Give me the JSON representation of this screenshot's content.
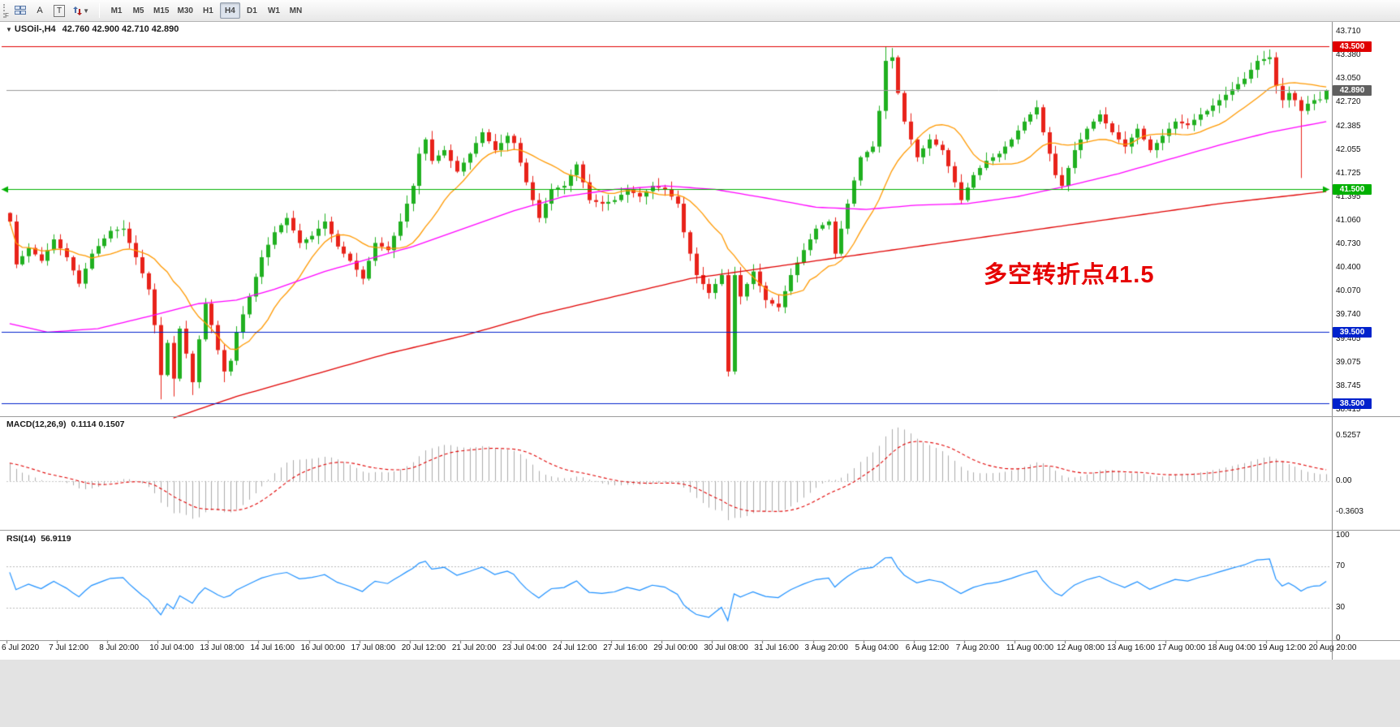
{
  "toolbar": {
    "buttons": [
      {
        "name": "text-annotation",
        "label": "A"
      },
      {
        "name": "text-box",
        "label": "T"
      }
    ],
    "timeframes": [
      "M1",
      "M5",
      "M15",
      "M30",
      "H1",
      "H4",
      "D1",
      "W1",
      "MN"
    ],
    "active_timeframe": "H4",
    "f_label": "F"
  },
  "chart_data": {
    "type": "candlestick",
    "symbol_label": "USOil-,H4",
    "ohlc_label": "42.760 42.900 42.710 42.890",
    "current_ohlc": {
      "open": 42.76,
      "high": 42.9,
      "low": 42.71,
      "close": 42.89
    },
    "y_range": [
      38.38,
      43.755
    ],
    "label_every": 8,
    "price_axis_ticks": [
      "43.710",
      "43.380",
      "43.050",
      "42.720",
      "42.385",
      "42.055",
      "41.725",
      "41.395",
      "41.060",
      "40.730",
      "40.400",
      "40.070",
      "39.740",
      "39.405",
      "39.075",
      "38.745",
      "38.415"
    ],
    "time_axis_labels": [
      "6 Jul 2020",
      "7 Jul 12:00",
      "8 Jul 20:00",
      "10 Jul 04:00",
      "13 Jul 08:00",
      "14 Jul 16:00",
      "16 Jul 00:00",
      "17 Jul 08:00",
      "20 Jul 12:00",
      "21 Jul 20:00",
      "23 Jul 04:00",
      "24 Jul 12:00",
      "27 Jul 16:00",
      "29 Jul 00:00",
      "30 Jul 08:00",
      "31 Jul 16:00",
      "3 Aug 20:00",
      "5 Aug 04:00",
      "6 Aug 12:00",
      "7 Aug 20:00",
      "11 Aug 00:00",
      "12 Aug 08:00",
      "13 Aug 16:00",
      "17 Aug 00:00",
      "18 Aug 04:00",
      "19 Aug 12:00",
      "20 Aug 20:00"
    ],
    "candles": {
      "n": 210,
      "up_color": "#20b020",
      "down_color": "#e8221a",
      "close_anchors": [
        [
          0,
          41.05
        ],
        [
          1,
          40.45
        ],
        [
          3,
          40.68
        ],
        [
          5,
          40.5
        ],
        [
          7,
          40.8
        ],
        [
          9,
          40.55
        ],
        [
          11,
          40.18
        ],
        [
          13,
          40.6
        ],
        [
          16,
          40.92
        ],
        [
          18,
          40.95
        ],
        [
          20,
          40.55
        ],
        [
          22,
          40.1
        ],
        [
          23,
          39.6
        ],
        [
          24,
          38.9
        ],
        [
          25,
          39.35
        ],
        [
          26,
          38.85
        ],
        [
          27,
          39.55
        ],
        [
          28,
          39.2
        ],
        [
          29,
          38.8
        ],
        [
          30,
          39.4
        ],
        [
          31,
          39.9
        ],
        [
          32,
          39.6
        ],
        [
          33,
          39.25
        ],
        [
          34,
          38.95
        ],
        [
          35,
          39.1
        ],
        [
          36,
          39.5
        ],
        [
          38,
          40.0
        ],
        [
          40,
          40.55
        ],
        [
          42,
          40.9
        ],
        [
          44,
          41.1
        ],
        [
          46,
          40.75
        ],
        [
          48,
          40.85
        ],
        [
          50,
          41.05
        ],
        [
          52,
          40.7
        ],
        [
          54,
          40.5
        ],
        [
          56,
          40.25
        ],
        [
          58,
          40.75
        ],
        [
          60,
          40.65
        ],
        [
          62,
          41.05
        ],
        [
          64,
          41.55
        ],
        [
          65,
          42.0
        ],
        [
          66,
          42.2
        ],
        [
          67,
          41.9
        ],
        [
          69,
          42.05
        ],
        [
          71,
          41.75
        ],
        [
          73,
          42.0
        ],
        [
          75,
          42.3
        ],
        [
          77,
          42.05
        ],
        [
          79,
          42.25
        ],
        [
          80,
          42.15
        ],
        [
          82,
          41.6
        ],
        [
          84,
          41.1
        ],
        [
          86,
          41.5
        ],
        [
          88,
          41.55
        ],
        [
          90,
          41.85
        ],
        [
          92,
          41.35
        ],
        [
          94,
          41.3
        ],
        [
          96,
          41.35
        ],
        [
          98,
          41.5
        ],
        [
          100,
          41.4
        ],
        [
          102,
          41.55
        ],
        [
          104,
          41.5
        ],
        [
          106,
          41.3
        ],
        [
          107,
          40.9
        ],
        [
          109,
          40.3
        ],
        [
          111,
          40.05
        ],
        [
          113,
          40.3
        ],
        [
          114,
          38.95
        ],
        [
          115,
          40.3
        ],
        [
          116,
          40.0
        ],
        [
          118,
          40.35
        ],
        [
          120,
          39.95
        ],
        [
          122,
          39.85
        ],
        [
          124,
          40.3
        ],
        [
          126,
          40.65
        ],
        [
          128,
          40.95
        ],
        [
          130,
          41.05
        ],
        [
          131,
          40.6
        ],
        [
          133,
          41.3
        ],
        [
          135,
          41.95
        ],
        [
          137,
          42.1
        ],
        [
          138,
          42.6
        ],
        [
          139,
          43.3
        ],
        [
          140,
          43.35
        ],
        [
          141,
          42.85
        ],
        [
          142,
          42.45
        ],
        [
          143,
          42.2
        ],
        [
          144,
          41.95
        ],
        [
          146,
          42.2
        ],
        [
          148,
          42.05
        ],
        [
          150,
          41.6
        ],
        [
          151,
          41.35
        ],
        [
          153,
          41.7
        ],
        [
          155,
          41.9
        ],
        [
          157,
          42.0
        ],
        [
          159,
          42.2
        ],
        [
          161,
          42.45
        ],
        [
          163,
          42.65
        ],
        [
          164,
          42.3
        ],
        [
          166,
          41.7
        ],
        [
          167,
          41.55
        ],
        [
          169,
          42.05
        ],
        [
          171,
          42.35
        ],
        [
          173,
          42.55
        ],
        [
          175,
          42.3
        ],
        [
          177,
          42.1
        ],
        [
          179,
          42.35
        ],
        [
          181,
          42.05
        ],
        [
          183,
          42.25
        ],
        [
          185,
          42.45
        ],
        [
          187,
          42.4
        ],
        [
          189,
          42.55
        ],
        [
          190,
          42.6
        ],
        [
          192,
          42.75
        ],
        [
          194,
          42.9
        ],
        [
          196,
          43.05
        ],
        [
          198,
          43.3
        ],
        [
          200,
          43.35
        ],
        [
          201,
          42.95
        ],
        [
          202,
          42.75
        ],
        [
          203,
          42.85
        ],
        [
          204,
          42.75
        ],
        [
          205,
          42.6
        ],
        [
          206,
          42.7
        ],
        [
          207,
          42.75
        ],
        [
          208,
          42.76
        ],
        [
          209,
          42.89
        ]
      ],
      "wick_overrides": [
        {
          "i": 0,
          "high": 41.18
        },
        {
          "i": 24,
          "low": 38.56
        },
        {
          "i": 26,
          "low": 38.6
        },
        {
          "i": 29,
          "low": 38.62
        },
        {
          "i": 34,
          "low": 38.8
        },
        {
          "i": 114,
          "low": 38.88
        },
        {
          "i": 139,
          "high": 43.5
        },
        {
          "i": 140,
          "high": 43.48
        },
        {
          "i": 199,
          "high": 43.44
        },
        {
          "i": 200,
          "high": 43.46
        },
        {
          "i": 205,
          "low": 41.66
        }
      ]
    },
    "moving_averages": [
      {
        "name": "fast-ma",
        "color": "#ff9900",
        "type": "sma",
        "period": 13
      },
      {
        "name": "mid-ma",
        "color": "#ff00ff",
        "anchors": [
          [
            0,
            39.62
          ],
          [
            6,
            39.5
          ],
          [
            14,
            39.55
          ],
          [
            22,
            39.72
          ],
          [
            30,
            39.9
          ],
          [
            36,
            39.95
          ],
          [
            42,
            40.1
          ],
          [
            50,
            40.35
          ],
          [
            58,
            40.55
          ],
          [
            64,
            40.7
          ],
          [
            72,
            40.95
          ],
          [
            80,
            41.2
          ],
          [
            88,
            41.4
          ],
          [
            96,
            41.5
          ],
          [
            104,
            41.55
          ],
          [
            112,
            41.5
          ],
          [
            120,
            41.38
          ],
          [
            128,
            41.25
          ],
          [
            136,
            41.22
          ],
          [
            144,
            41.28
          ],
          [
            152,
            41.3
          ],
          [
            160,
            41.4
          ],
          [
            168,
            41.55
          ],
          [
            176,
            41.72
          ],
          [
            184,
            41.92
          ],
          [
            192,
            42.12
          ],
          [
            200,
            42.3
          ],
          [
            209,
            42.45
          ]
        ]
      },
      {
        "name": "slow-ma",
        "color": "#e00000",
        "from": 26,
        "anchors": [
          [
            26,
            38.3
          ],
          [
            36,
            38.6
          ],
          [
            48,
            38.9
          ],
          [
            60,
            39.2
          ],
          [
            72,
            39.45
          ],
          [
            84,
            39.75
          ],
          [
            96,
            40.0
          ],
          [
            108,
            40.25
          ],
          [
            120,
            40.4
          ],
          [
            132,
            40.55
          ],
          [
            144,
            40.7
          ],
          [
            156,
            40.85
          ],
          [
            168,
            41.0
          ],
          [
            180,
            41.15
          ],
          [
            192,
            41.3
          ],
          [
            200,
            41.38
          ],
          [
            209,
            41.47
          ]
        ]
      }
    ],
    "horizontal_lines": [
      {
        "price": 43.5,
        "label": "43.500",
        "color": "#e00000"
      },
      {
        "price": 41.5,
        "label": "41.500",
        "color": "#00b000",
        "arrows": true
      },
      {
        "price": 39.5,
        "label": "39.500",
        "color": "#0022cc"
      },
      {
        "price": 38.5,
        "label": "38.500",
        "color": "#0022cc"
      }
    ],
    "bid": {
      "price": 42.89,
      "label": "42.890",
      "color": "#606060",
      "line_color": "#9a9a9a"
    },
    "annotation": {
      "text": "多空转折点41.5",
      "color": "#e60000"
    },
    "indicators": [
      {
        "type": "MACD",
        "label": "MACD(12,26,9)",
        "values_text": "0.1114 0.1507",
        "params": {
          "fast": 12,
          "slow": 26,
          "signal": 9
        },
        "current": [
          0.1114,
          0.1507
        ],
        "axis_labels": [
          "0.5257",
          "0.00",
          "-0.3603"
        ],
        "histogram_color": "#ababab",
        "signal_color": "#e00000"
      },
      {
        "type": "RSI",
        "label": "RSI(14)",
        "values_text": "56.9119",
        "params": {
          "period": 14
        },
        "current": 56.9119,
        "axis_labels": [
          "100",
          "70",
          "30",
          "0"
        ],
        "levels": [
          70,
          30
        ],
        "range": [
          0,
          100
        ],
        "color": "#1e90ff"
      }
    ]
  }
}
